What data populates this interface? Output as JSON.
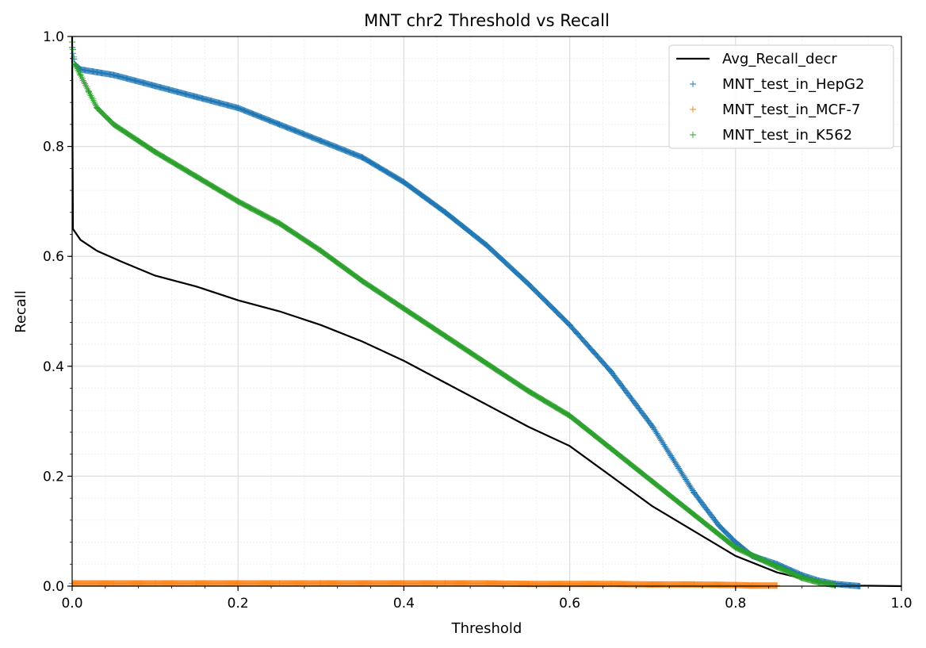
{
  "chart_data": {
    "type": "line",
    "title": "MNT chr2 Threshold vs Recall",
    "xlabel": "Threshold",
    "ylabel": "Recall",
    "xlim": [
      0.0,
      1.0
    ],
    "ylim": [
      0.0,
      1.0
    ],
    "grid": true,
    "legend_position": "top-right",
    "x_ticks": [
      0.0,
      0.2,
      0.4,
      0.6,
      0.8,
      1.0
    ],
    "y_ticks": [
      0.0,
      0.2,
      0.4,
      0.6,
      0.8,
      1.0
    ],
    "x_tick_labels": [
      "0.0",
      "0.2",
      "0.4",
      "0.6",
      "0.8",
      "1.0"
    ],
    "y_tick_labels": [
      "0.0",
      "0.2",
      "0.4",
      "0.6",
      "0.8",
      "1.0"
    ],
    "series": [
      {
        "name": "Avg_Recall_decr",
        "style": "line",
        "color": "#000000",
        "x": [
          0.0,
          0.0005,
          0.001,
          0.01,
          0.03,
          0.06,
          0.1,
          0.15,
          0.2,
          0.25,
          0.3,
          0.35,
          0.4,
          0.45,
          0.5,
          0.55,
          0.6,
          0.65,
          0.7,
          0.75,
          0.8,
          0.85,
          0.9,
          0.95,
          1.0
        ],
        "y": [
          1.0,
          0.8,
          0.65,
          0.63,
          0.61,
          0.59,
          0.565,
          0.545,
          0.52,
          0.5,
          0.475,
          0.445,
          0.41,
          0.37,
          0.33,
          0.29,
          0.255,
          0.2,
          0.145,
          0.1,
          0.055,
          0.025,
          0.007,
          0.001,
          0.0
        ]
      },
      {
        "name": "MNT_test_in_HepG2",
        "style": "scatter",
        "marker": "+",
        "color": "#1f77b4",
        "x": [
          0.0,
          0.003,
          0.01,
          0.03,
          0.05,
          0.1,
          0.15,
          0.2,
          0.25,
          0.3,
          0.35,
          0.4,
          0.45,
          0.5,
          0.55,
          0.6,
          0.65,
          0.7,
          0.75,
          0.78,
          0.8,
          0.82,
          0.85,
          0.88,
          0.9,
          0.92,
          0.95
        ],
        "y": [
          0.98,
          0.95,
          0.94,
          0.935,
          0.93,
          0.91,
          0.89,
          0.87,
          0.84,
          0.81,
          0.78,
          0.735,
          0.68,
          0.62,
          0.55,
          0.475,
          0.39,
          0.29,
          0.17,
          0.11,
          0.08,
          0.055,
          0.04,
          0.02,
          0.01,
          0.004,
          0.0
        ]
      },
      {
        "name": "MNT_test_in_MCF-7",
        "style": "scatter",
        "marker": "+",
        "color": "#ff7f0e",
        "x": [
          0.0,
          0.05,
          0.1,
          0.15,
          0.2,
          0.25,
          0.3,
          0.35,
          0.4,
          0.45,
          0.5,
          0.55,
          0.6,
          0.65,
          0.7,
          0.75,
          0.8,
          0.82,
          0.85
        ],
        "y": [
          0.005,
          0.005,
          0.005,
          0.005,
          0.005,
          0.005,
          0.005,
          0.005,
          0.005,
          0.005,
          0.005,
          0.004,
          0.004,
          0.004,
          0.003,
          0.003,
          0.002,
          0.001,
          0.001
        ]
      },
      {
        "name": "MNT_test_in_K562",
        "style": "scatter",
        "marker": "+",
        "color": "#2ca02c",
        "x": [
          0.0,
          0.003,
          0.01,
          0.02,
          0.03,
          0.05,
          0.08,
          0.1,
          0.15,
          0.2,
          0.25,
          0.3,
          0.35,
          0.4,
          0.45,
          0.5,
          0.55,
          0.6,
          0.65,
          0.7,
          0.75,
          0.8,
          0.85,
          0.88,
          0.9,
          0.92
        ],
        "y": [
          0.99,
          0.95,
          0.93,
          0.9,
          0.87,
          0.84,
          0.81,
          0.79,
          0.745,
          0.7,
          0.66,
          0.61,
          0.555,
          0.505,
          0.455,
          0.405,
          0.355,
          0.31,
          0.25,
          0.19,
          0.13,
          0.07,
          0.035,
          0.015,
          0.007,
          0.002
        ]
      }
    ]
  }
}
